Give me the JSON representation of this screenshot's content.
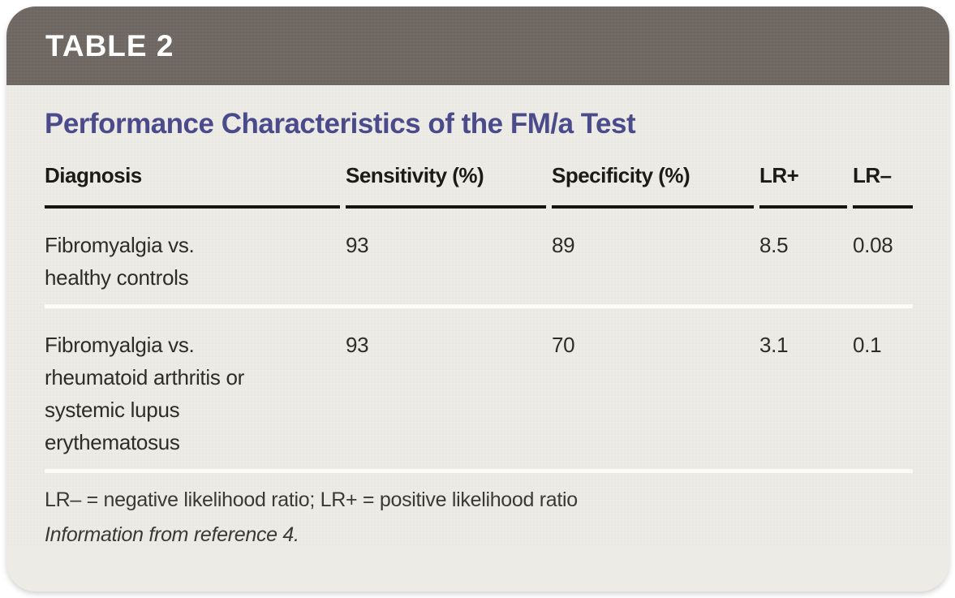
{
  "header": {
    "label": "TABLE 2"
  },
  "title": "Performance Characteristics of the FM/a Test",
  "table": {
    "columns": [
      "Diagnosis",
      "Sensitivity (%)",
      "Specificity (%)",
      "LR+",
      "LR–"
    ],
    "rows": [
      {
        "diagnosis": "Fibromyalgia vs. healthy controls",
        "sensitivity": "93",
        "specificity": "89",
        "lr_plus": "8.5",
        "lr_minus": "0.08"
      },
      {
        "diagnosis": "Fibromyalgia vs. rheumatoid arthritis or systemic lupus erythematosus",
        "sensitivity": "93",
        "specificity": "70",
        "lr_plus": "3.1",
        "lr_minus": "0.1"
      }
    ]
  },
  "footnotes": {
    "abbreviations": "LR– = negative likelihood ratio; LR+ = positive likelihood ratio",
    "source": "Information from reference 4."
  },
  "colors": {
    "page_background": "#FFFFFF",
    "header_bar": "#6F6762",
    "panel_background": "#EDEBE5",
    "title_text": "#4B4A8B",
    "header_rule": "#17140F",
    "row_separator": "#FCFBF7",
    "body_text": "#2E2C28",
    "header_label_text": "#FFFFFF"
  }
}
